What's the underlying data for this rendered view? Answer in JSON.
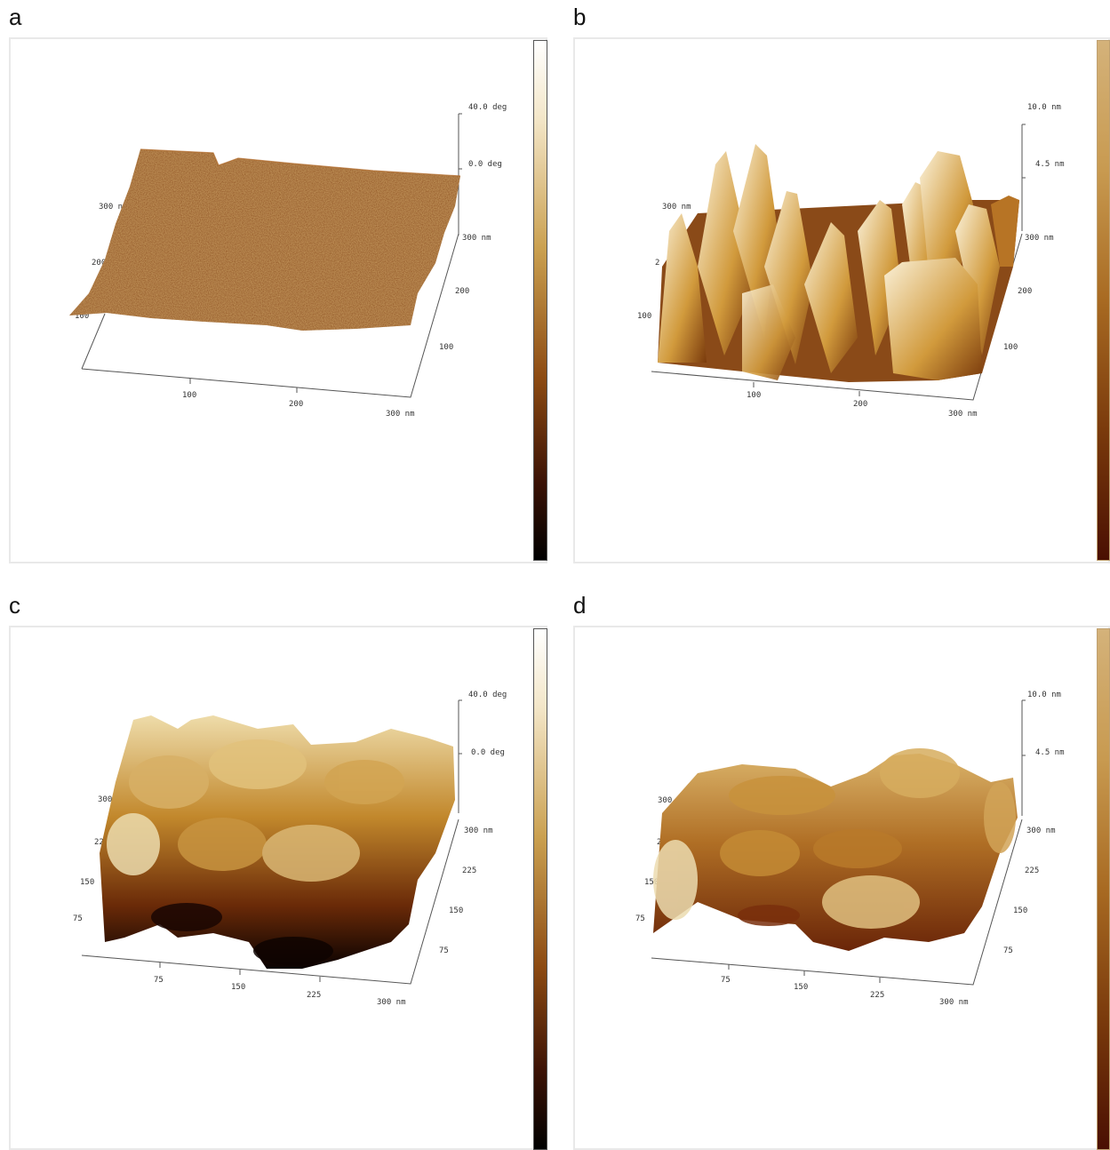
{
  "panels": [
    {
      "letter": "a",
      "z_ticks": [
        "40.0 deg",
        "0.0 deg"
      ],
      "back_labels": [
        "300 nm",
        "200",
        "100"
      ],
      "x_ticks": [
        "100",
        "200",
        "300 nm"
      ],
      "y_ticks": [
        "300 nm",
        "200",
        "100"
      ],
      "surface_colors": [
        "#8a4616",
        "#a35a1f",
        "#7a3a10"
      ],
      "colorbar": "phase"
    },
    {
      "letter": "b",
      "z_ticks": [
        "10.0 nm",
        "4.5 nm"
      ],
      "back_labels": [
        "300 nm",
        "2",
        "100"
      ],
      "x_ticks": [
        "100",
        "200",
        "300 nm"
      ],
      "y_ticks": [
        "300 nm",
        "200",
        "100"
      ],
      "surface_colors": [
        "#f3e3b5",
        "#c98e2c",
        "#5b1d07"
      ],
      "colorbar": "height"
    },
    {
      "letter": "c",
      "z_ticks": [
        "40.0 deg",
        "0.0 deg"
      ],
      "back_labels": [
        "300",
        "22",
        "150",
        "75"
      ],
      "x_ticks": [
        "75",
        "150",
        "225",
        "300 nm"
      ],
      "y_ticks": [
        "300 nm",
        "225",
        "150",
        "75"
      ],
      "surface_colors": [
        "#e9d29a",
        "#b37a24",
        "#140402"
      ],
      "colorbar": "phase"
    },
    {
      "letter": "d",
      "z_ticks": [
        "10.0 nm",
        "4.5 nm"
      ],
      "back_labels": [
        "300 nm",
        "2",
        "150",
        "75"
      ],
      "x_ticks": [
        "75",
        "150",
        "225",
        "300 nm"
      ],
      "y_ticks": [
        "300 nm",
        "225",
        "150",
        "75"
      ],
      "surface_colors": [
        "#d9b56c",
        "#a8641e",
        "#6e2a0c"
      ],
      "colorbar": "height"
    }
  ]
}
